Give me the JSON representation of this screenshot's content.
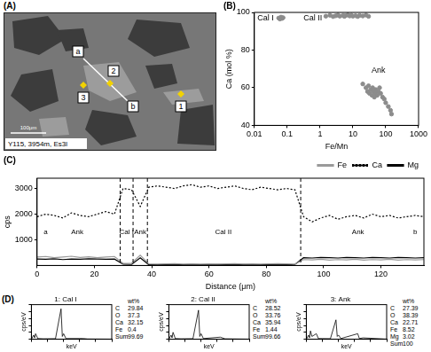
{
  "panel_a": {
    "label": "(A)",
    "profile_start": "a",
    "profile_end": "b",
    "points": [
      "1",
      "2",
      "3"
    ],
    "caption": "Y115, 3954m, Es3l",
    "scale_bar": "100μm"
  },
  "panel_d": {
    "label": "(D)"
  },
  "chart_data": [
    {
      "type": "scatter",
      "panel_label": "(B)",
      "x_label": "Fe/Mn",
      "y_label": "Ca (mol %)",
      "log": "x",
      "grid": false,
      "xlim": [
        0.01,
        1000
      ],
      "xticks": [
        0.01,
        0.1,
        1,
        10,
        100,
        1000
      ],
      "ylim": [
        40,
        100
      ],
      "yticks": [
        40,
        60,
        80,
        100
      ],
      "series": [
        {
          "x": [
            0.055,
            0.06,
            0.065,
            0.07,
            0.075
          ],
          "values": [
            97,
            96.5,
            97.5,
            96.8,
            97.2
          ],
          "color": "#8c8c8c",
          "marker": "circle"
        },
        {
          "x": [
            1.5,
            2,
            2.5,
            3,
            3.5,
            4,
            5,
            5.5,
            6,
            7,
            8,
            9,
            10,
            12,
            14,
            16,
            20,
            25,
            30
          ],
          "values": [
            98,
            98.5,
            97.8,
            98.2,
            98.6,
            98,
            98.4,
            97.9,
            98.3,
            98.7,
            98.1,
            98.5,
            98,
            98.3,
            97.8,
            98.4,
            98.1,
            98.6,
            97.9
          ],
          "color": "#8c8c8c",
          "marker": "circle"
        },
        {
          "x": [
            20,
            25,
            28,
            30,
            32,
            35,
            38,
            40,
            42,
            45,
            48,
            50,
            55,
            60,
            65,
            70,
            80,
            90,
            100,
            120,
            140,
            150
          ],
          "values": [
            62,
            60,
            58,
            61,
            57,
            59,
            56,
            60,
            58,
            55,
            57,
            59,
            56,
            58,
            60,
            57,
            55,
            54,
            52,
            50,
            48,
            46
          ],
          "color": "#8c8c8c",
          "marker": "circle"
        }
      ],
      "annotations": [
        {
          "text": "Cal I",
          "x": 0.022,
          "y": 97
        },
        {
          "text": "Cal II",
          "x": 0.6,
          "y": 97
        },
        {
          "text": "Ank",
          "x": 60,
          "y": 69
        }
      ]
    },
    {
      "type": "line",
      "panel_label": "(C)",
      "x_label": "Distance (μm)",
      "y_label": "cps",
      "grid": false,
      "legend": "top-right",
      "xlim": [
        0,
        135
      ],
      "xticks": [
        0,
        20,
        40,
        60,
        80,
        100,
        120
      ],
      "ylim": [
        0,
        3400
      ],
      "yticks": [
        1000,
        2000,
        3000
      ],
      "x": [
        0,
        3,
        6,
        9,
        12,
        15,
        18,
        21,
        24,
        27,
        30,
        33,
        36,
        39,
        42,
        45,
        48,
        51,
        54,
        57,
        60,
        63,
        66,
        69,
        72,
        75,
        78,
        81,
        84,
        87,
        90,
        93,
        96,
        99,
        102,
        105,
        108,
        111,
        114,
        117,
        120,
        123,
        126,
        129,
        132,
        135
      ],
      "series": [
        {
          "name": "Fe",
          "color": "#9a9a9a",
          "line_style": "solid",
          "marker": "none",
          "values": [
            330,
            350,
            300,
            330,
            360,
            310,
            340,
            300,
            330,
            350,
            80,
            90,
            400,
            60,
            50,
            60,
            70,
            50,
            60,
            50,
            60,
            50,
            60,
            70,
            50,
            60,
            50,
            60,
            70,
            60,
            50,
            230,
            220,
            240,
            210,
            230,
            220,
            240,
            210,
            230,
            220,
            240,
            210,
            230,
            220,
            230
          ]
        },
        {
          "name": "Ca",
          "color": "#000000",
          "line_style": "dotted",
          "marker": "none",
          "values": [
            1900,
            2000,
            1950,
            1850,
            2050,
            1950,
            1900,
            2000,
            2100,
            2000,
            3000,
            2950,
            2300,
            3050,
            3100,
            3050,
            3000,
            3100,
            3150,
            3050,
            3100,
            3000,
            3050,
            3100,
            3000,
            2950,
            3050,
            3000,
            2950,
            3000,
            2950,
            1900,
            1700,
            1850,
            1950,
            1800,
            1900,
            1950,
            1850,
            2000,
            1900,
            1950,
            1850,
            1900,
            1950,
            1900
          ]
        },
        {
          "name": "Mg",
          "color": "#000000",
          "line_style": "solid",
          "marker": "none",
          "values": [
            250,
            240,
            260,
            230,
            250,
            240,
            260,
            250,
            240,
            250,
            50,
            40,
            300,
            30,
            30,
            40,
            30,
            30,
            40,
            30,
            30,
            40,
            30,
            30,
            40,
            30,
            30,
            40,
            30,
            30,
            40,
            300,
            290,
            310,
            300,
            290,
            310,
            300,
            290,
            310,
            300,
            290,
            310,
            300,
            290,
            300
          ]
        }
      ],
      "boundaries": [
        29,
        33.5,
        38.5,
        92
      ],
      "annotations": [
        {
          "text": "a",
          "x": 3,
          "y": 1300
        },
        {
          "text": "Ank",
          "x": 14,
          "y": 1300
        },
        {
          "text": "Cal I",
          "x": 31.2,
          "y": 1300
        },
        {
          "text": "Ank",
          "x": 36,
          "y": 1300
        },
        {
          "text": "Cal II",
          "x": 65,
          "y": 1300
        },
        {
          "text": "Ank",
          "x": 112,
          "y": 1300
        },
        {
          "text": "b",
          "x": 132,
          "y": 1300
        }
      ]
    },
    {
      "type": "line",
      "title": "1: Cal I",
      "x_label": "keV",
      "y_label": "cps/eV",
      "grid": false,
      "tick_labels": false,
      "xlim": [
        0,
        10
      ],
      "xticks": [
        0,
        2,
        4,
        6,
        8,
        10
      ],
      "ylim": [
        0,
        25
      ],
      "yticks": [
        0,
        5,
        10,
        15,
        20,
        25
      ],
      "x": [
        0,
        0.28,
        0.4,
        0.52,
        0.8,
        1.5,
        3,
        3.69,
        3.85,
        4.01,
        4.3,
        6.4,
        7,
        10
      ],
      "series": [
        {
          "color": "#000000",
          "line_style": "solid",
          "marker": "none",
          "values": [
            0,
            3,
            1,
            4,
            0.5,
            0.3,
            0.4,
            22,
            2,
            4,
            0.5,
            0.5,
            0.2,
            0.1
          ]
        }
      ],
      "table": {
        "header": "wt%",
        "rows": [
          {
            "element": "C",
            "wt": 29.84
          },
          {
            "element": "O",
            "wt": 37.3
          },
          {
            "element": "Ca",
            "wt": 32.15
          },
          {
            "element": "Fe",
            "wt": 0.4
          },
          {
            "element": "Sum",
            "wt": 99.69
          }
        ]
      }
    },
    {
      "type": "line",
      "title": "2: Cal II",
      "x_label": "keV",
      "y_label": "cps/eV",
      "grid": false,
      "tick_labels": false,
      "xlim": [
        0,
        10
      ],
      "xticks": [
        0,
        2,
        4,
        6,
        8,
        10
      ],
      "ylim": [
        0,
        25
      ],
      "yticks": [
        0,
        5,
        10,
        15,
        20,
        25
      ],
      "x": [
        0,
        0.28,
        0.4,
        0.52,
        0.8,
        1.5,
        3,
        3.69,
        3.85,
        4.01,
        4.3,
        6.4,
        7,
        10
      ],
      "series": [
        {
          "color": "#000000",
          "line_style": "solid",
          "marker": "none",
          "values": [
            0,
            3,
            1,
            5,
            0.5,
            0.3,
            0.4,
            21,
            2,
            4,
            0.5,
            1.5,
            0.3,
            0.1
          ]
        }
      ],
      "table": {
        "header": "wt%",
        "rows": [
          {
            "element": "C",
            "wt": 28.52
          },
          {
            "element": "O",
            "wt": 33.76
          },
          {
            "element": "Ca",
            "wt": 35.94
          },
          {
            "element": "Fe",
            "wt": 1.44
          },
          {
            "element": "Sum",
            "wt": 99.66
          }
        ]
      }
    },
    {
      "type": "line",
      "title": "3: Ank",
      "x_label": "keV",
      "y_label": "cps/eV",
      "grid": false,
      "tick_labels": false,
      "xlim": [
        0,
        10
      ],
      "xticks": [
        0,
        2,
        4,
        6,
        8,
        10
      ],
      "ylim": [
        0,
        25
      ],
      "yticks": [
        0,
        5,
        10,
        15,
        20,
        25
      ],
      "x": [
        0,
        0.28,
        0.4,
        0.52,
        0.7,
        1.25,
        1.5,
        3,
        3.69,
        3.85,
        4.01,
        4.3,
        6.4,
        6.6,
        7.06,
        10
      ],
      "series": [
        {
          "color": "#000000",
          "line_style": "solid",
          "marker": "none",
          "values": [
            0,
            3,
            1,
            6,
            2,
            4,
            0.5,
            0.4,
            14,
            2,
            3,
            0.5,
            4,
            0.5,
            1,
            0.1
          ]
        }
      ],
      "table": {
        "header": "wt%",
        "rows": [
          {
            "element": "C",
            "wt": 27.39
          },
          {
            "element": "O",
            "wt": 38.39
          },
          {
            "element": "Ca",
            "wt": 22.71
          },
          {
            "element": "Fe",
            "wt": 8.52
          },
          {
            "element": "Mg",
            "wt": 3.02
          },
          {
            "element": "Sum",
            "wt": 100
          }
        ]
      }
    }
  ]
}
